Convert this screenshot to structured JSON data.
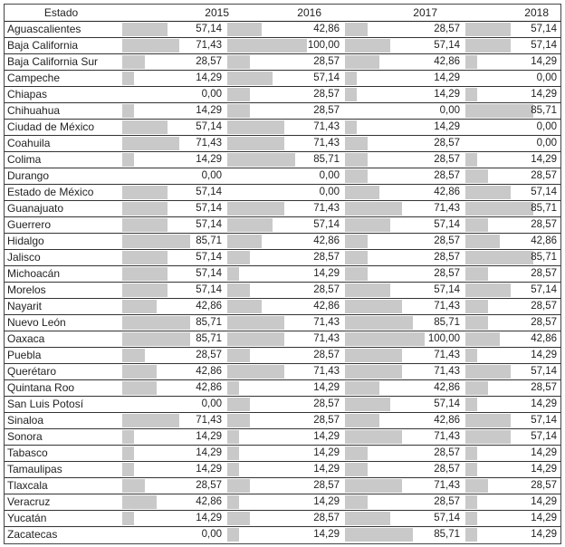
{
  "table": {
    "headers": [
      "Estado",
      "2015",
      "2016",
      "2017",
      "2018"
    ],
    "bar_color": "#c9c9c9",
    "bar_max": 100,
    "rows": [
      {
        "estado": "Aguascalientes",
        "values": [
          "57,14",
          "42,86",
          "28,57",
          "57,14"
        ]
      },
      {
        "estado": "Baja California",
        "values": [
          "71,43",
          "100,00",
          "57,14",
          "57,14"
        ]
      },
      {
        "estado": "Baja California Sur",
        "values": [
          "28,57",
          "28,57",
          "42,86",
          "14,29"
        ]
      },
      {
        "estado": "Campeche",
        "values": [
          "14,29",
          "57,14",
          "14,29",
          "0,00"
        ]
      },
      {
        "estado": "Chiapas",
        "values": [
          "0,00",
          "28,57",
          "14,29",
          "14,29"
        ]
      },
      {
        "estado": "Chihuahua",
        "values": [
          "14,29",
          "28,57",
          "0,00",
          "85,71"
        ]
      },
      {
        "estado": "Ciudad de México",
        "values": [
          "57,14",
          "71,43",
          "14,29",
          "0,00"
        ]
      },
      {
        "estado": "Coahuila",
        "values": [
          "71,43",
          "71,43",
          "28,57",
          "0,00"
        ]
      },
      {
        "estado": "Colima",
        "values": [
          "14,29",
          "85,71",
          "28,57",
          "14,29"
        ]
      },
      {
        "estado": "Durango",
        "values": [
          "0,00",
          "0,00",
          "28,57",
          "28,57"
        ]
      },
      {
        "estado": "Estado de México",
        "values": [
          "57,14",
          "0,00",
          "42,86",
          "57,14"
        ]
      },
      {
        "estado": "Guanajuato",
        "values": [
          "57,14",
          "71,43",
          "71,43",
          "85,71"
        ]
      },
      {
        "estado": "Guerrero",
        "values": [
          "57,14",
          "57,14",
          "57,14",
          "28,57"
        ]
      },
      {
        "estado": "Hidalgo",
        "values": [
          "85,71",
          "42,86",
          "28,57",
          "42,86"
        ]
      },
      {
        "estado": "Jalisco",
        "values": [
          "57,14",
          "28,57",
          "28,57",
          "85,71"
        ]
      },
      {
        "estado": "Michoacán",
        "values": [
          "57,14",
          "14,29",
          "28,57",
          "28,57"
        ]
      },
      {
        "estado": "Morelos",
        "values": [
          "57,14",
          "28,57",
          "57,14",
          "57,14"
        ]
      },
      {
        "estado": "Nayarit",
        "values": [
          "42,86",
          "42,86",
          "71,43",
          "28,57"
        ]
      },
      {
        "estado": "Nuevo León",
        "values": [
          "85,71",
          "71,43",
          "85,71",
          "28,57"
        ]
      },
      {
        "estado": "Oaxaca",
        "values": [
          "85,71",
          "71,43",
          "100,00",
          "42,86"
        ]
      },
      {
        "estado": "Puebla",
        "values": [
          "28,57",
          "28,57",
          "71,43",
          "14,29"
        ]
      },
      {
        "estado": "Querétaro",
        "values": [
          "42,86",
          "71,43",
          "71,43",
          "57,14"
        ]
      },
      {
        "estado": "Quintana Roo",
        "values": [
          "42,86",
          "14,29",
          "42,86",
          "28,57"
        ]
      },
      {
        "estado": "San Luis Potosí",
        "values": [
          "0,00",
          "28,57",
          "57,14",
          "14,29"
        ]
      },
      {
        "estado": "Sinaloa",
        "values": [
          "71,43",
          "28,57",
          "42,86",
          "57,14"
        ]
      },
      {
        "estado": "Sonora",
        "values": [
          "14,29",
          "14,29",
          "71,43",
          "57,14"
        ]
      },
      {
        "estado": "Tabasco",
        "values": [
          "14,29",
          "14,29",
          "28,57",
          "14,29"
        ]
      },
      {
        "estado": "Tamaulipas",
        "values": [
          "14,29",
          "14,29",
          "28,57",
          "14,29"
        ]
      },
      {
        "estado": "Tlaxcala",
        "values": [
          "28,57",
          "28,57",
          "71,43",
          "28,57"
        ]
      },
      {
        "estado": "Veracruz",
        "values": [
          "42,86",
          "14,29",
          "28,57",
          "14,29"
        ]
      },
      {
        "estado": "Yucatán",
        "values": [
          "14,29",
          "28,57",
          "57,14",
          "14,29"
        ]
      },
      {
        "estado": "Zacatecas",
        "values": [
          "0,00",
          "14,29",
          "85,71",
          "14,29"
        ]
      }
    ]
  }
}
